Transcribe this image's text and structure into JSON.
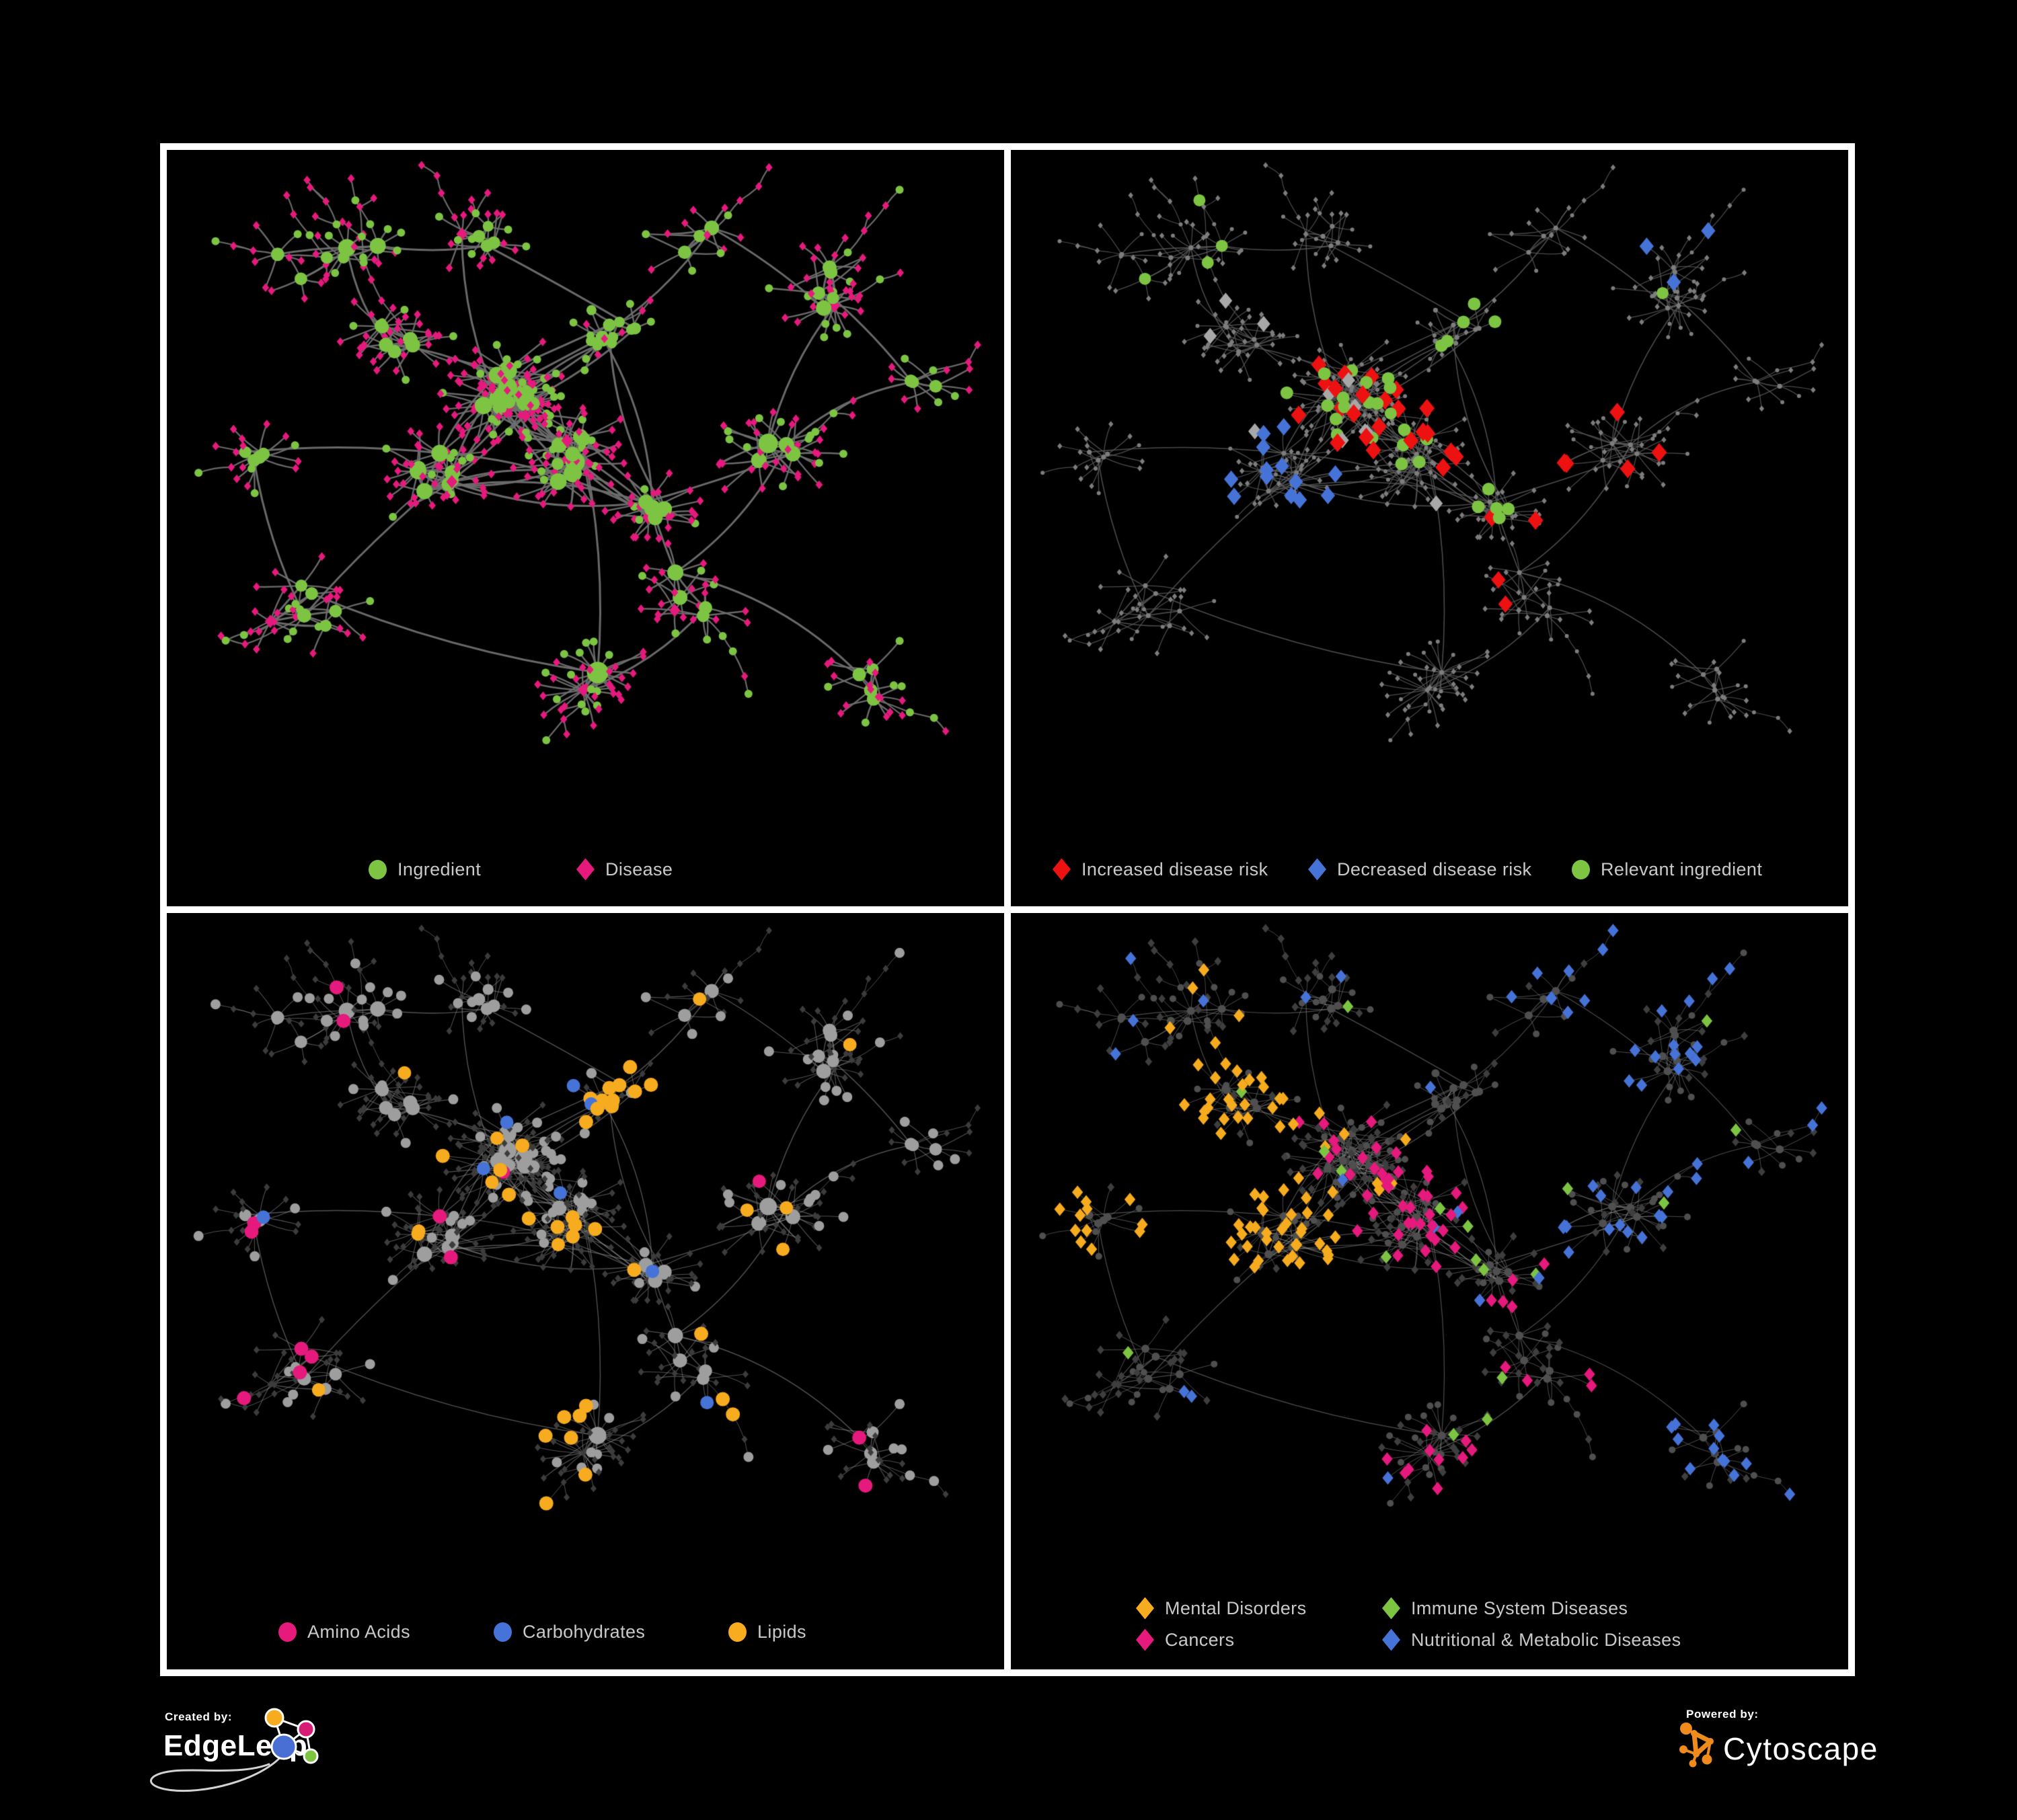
{
  "page": {
    "background": "#000000",
    "frame_border": "#ffffff"
  },
  "panels": [
    {
      "id": "ingredient-disease-network",
      "legend": [
        {
          "label": "Ingredient",
          "shape": "circle",
          "color": "#7cc442"
        },
        {
          "label": "Disease",
          "shape": "diamond",
          "color": "#e6197d"
        }
      ]
    },
    {
      "id": "disease-risk-network",
      "legend": [
        {
          "label": "Increased disease risk",
          "shape": "diamond",
          "color": "#ee1111"
        },
        {
          "label": "Decreased disease risk",
          "shape": "diamond",
          "color": "#4673d7"
        },
        {
          "label": "Relevant ingredient",
          "shape": "circle",
          "color": "#7cc442"
        }
      ]
    },
    {
      "id": "nutrient-class-network",
      "legend": [
        {
          "label": "Amino Acids",
          "shape": "circle",
          "color": "#e6197d"
        },
        {
          "label": "Carbohydrates",
          "shape": "circle",
          "color": "#4673d7"
        },
        {
          "label": "Lipids",
          "shape": "circle",
          "color": "#f7ab1e"
        }
      ]
    },
    {
      "id": "disease-category-network",
      "legend": [
        {
          "label": "Mental Disorders",
          "shape": "diamond",
          "color": "#f7ab1e"
        },
        {
          "label": "Immune System Diseases",
          "shape": "diamond",
          "color": "#7cc442"
        },
        {
          "label": "Cancers",
          "shape": "diamond",
          "color": "#e6197d"
        },
        {
          "label": "Nutritional & Metabolic Diseases",
          "shape": "diamond",
          "color": "#4673d7"
        }
      ]
    }
  ],
  "footer": {
    "created_by_label": "Created by:",
    "created_by_brand": "EdgeLeap",
    "powered_by_label": "Powered by:",
    "powered_by_brand": "Cytoscape",
    "edgeleap_logo_colors": {
      "orange": "#f7ab1e",
      "pink": "#d81b74",
      "blue": "#4a6fd4",
      "green": "#7cc442"
    },
    "cytoscape_logo_color": "#ef8b1d"
  },
  "network": {
    "palette": {
      "green": "#7cc442",
      "pink": "#e6197d",
      "red": "#ee1111",
      "blue": "#4673d7",
      "orange": "#f7ab1e",
      "gray_highlight": "#a8a8a8"
    },
    "panel_styles": [
      {
        "edge": "#6f6f6f",
        "edge_alpha": 0.95,
        "circle": "#7cc442",
        "diamond": "#e6197d"
      },
      {
        "edge": "#5e5e5e",
        "edge_alpha": 0.8,
        "circle": "#7d7d7d",
        "diamond": "#7d7d7d"
      },
      {
        "edge": "#949494",
        "edge_alpha": 0.55,
        "circle": "#9e9e9e",
        "diamond": "#3c3c3c"
      },
      {
        "edge": "#9a9a9a",
        "edge_alpha": 0.5,
        "circle": "#4f4f4f",
        "diamond": "#3e3e3e"
      }
    ]
  }
}
